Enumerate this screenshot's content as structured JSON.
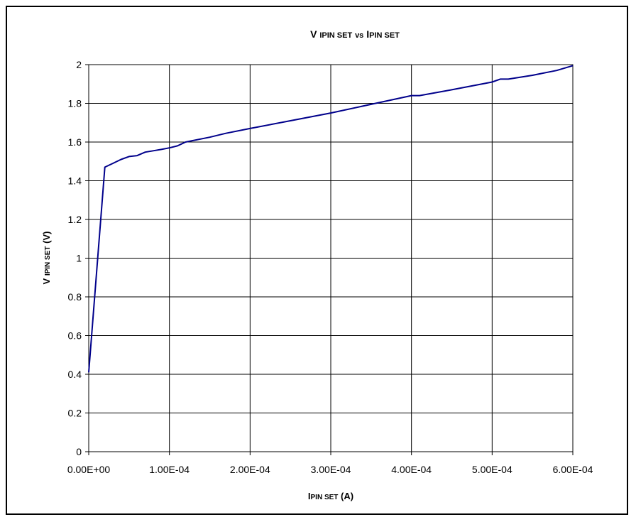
{
  "chart_data": {
    "type": "line",
    "title": {
      "main": "V",
      "sub1": "IPIN SET",
      "mid": "vs",
      "main2": "I",
      "sub2": "PIN SET"
    },
    "xlabel": {
      "main": "I",
      "sub": "PIN SET",
      "unit": "(A)"
    },
    "ylabel": {
      "main": "V",
      "sub": "IPIN SET",
      "unit": "(V)"
    },
    "xlim": [
      0,
      0.0006
    ],
    "ylim": [
      0,
      2
    ],
    "x_ticks": [
      0,
      0.0001,
      0.0002,
      0.0003,
      0.0004,
      0.0005,
      0.0006
    ],
    "x_tick_labels": [
      "0.00E+00",
      "1.00E-04",
      "2.00E-04",
      "3.00E-04",
      "4.00E-04",
      "5.00E-04",
      "6.00E-04"
    ],
    "y_ticks": [
      0,
      0.2,
      0.4,
      0.6,
      0.8,
      1,
      1.2,
      1.4,
      1.6,
      1.8,
      2
    ],
    "y_tick_labels": [
      "0",
      "0.2",
      "0.4",
      "0.6",
      "0.8",
      "1",
      "1.2",
      "1.4",
      "1.6",
      "1.8",
      "2"
    ],
    "grid": true,
    "series": [
      {
        "color": "#00008B",
        "x": [
          0,
          2e-05,
          3e-05,
          4e-05,
          5e-05,
          6e-05,
          7e-05,
          8e-05,
          9e-05,
          0.0001,
          0.00011,
          0.00012,
          0.00015,
          0.00017,
          0.0002,
          0.00025,
          0.0003,
          0.00035,
          0.0004,
          0.00041,
          0.00045,
          0.0005,
          0.00051,
          0.00052,
          0.00055,
          0.00058,
          0.0006
        ],
        "y": [
          0.41,
          1.47,
          1.49,
          1.51,
          1.525,
          1.53,
          1.548,
          1.555,
          1.562,
          1.57,
          1.58,
          1.6,
          1.625,
          1.645,
          1.67,
          1.71,
          1.75,
          1.795,
          1.84,
          1.84,
          1.87,
          1.91,
          1.925,
          1.925,
          1.945,
          1.97,
          1.995
        ]
      }
    ]
  }
}
